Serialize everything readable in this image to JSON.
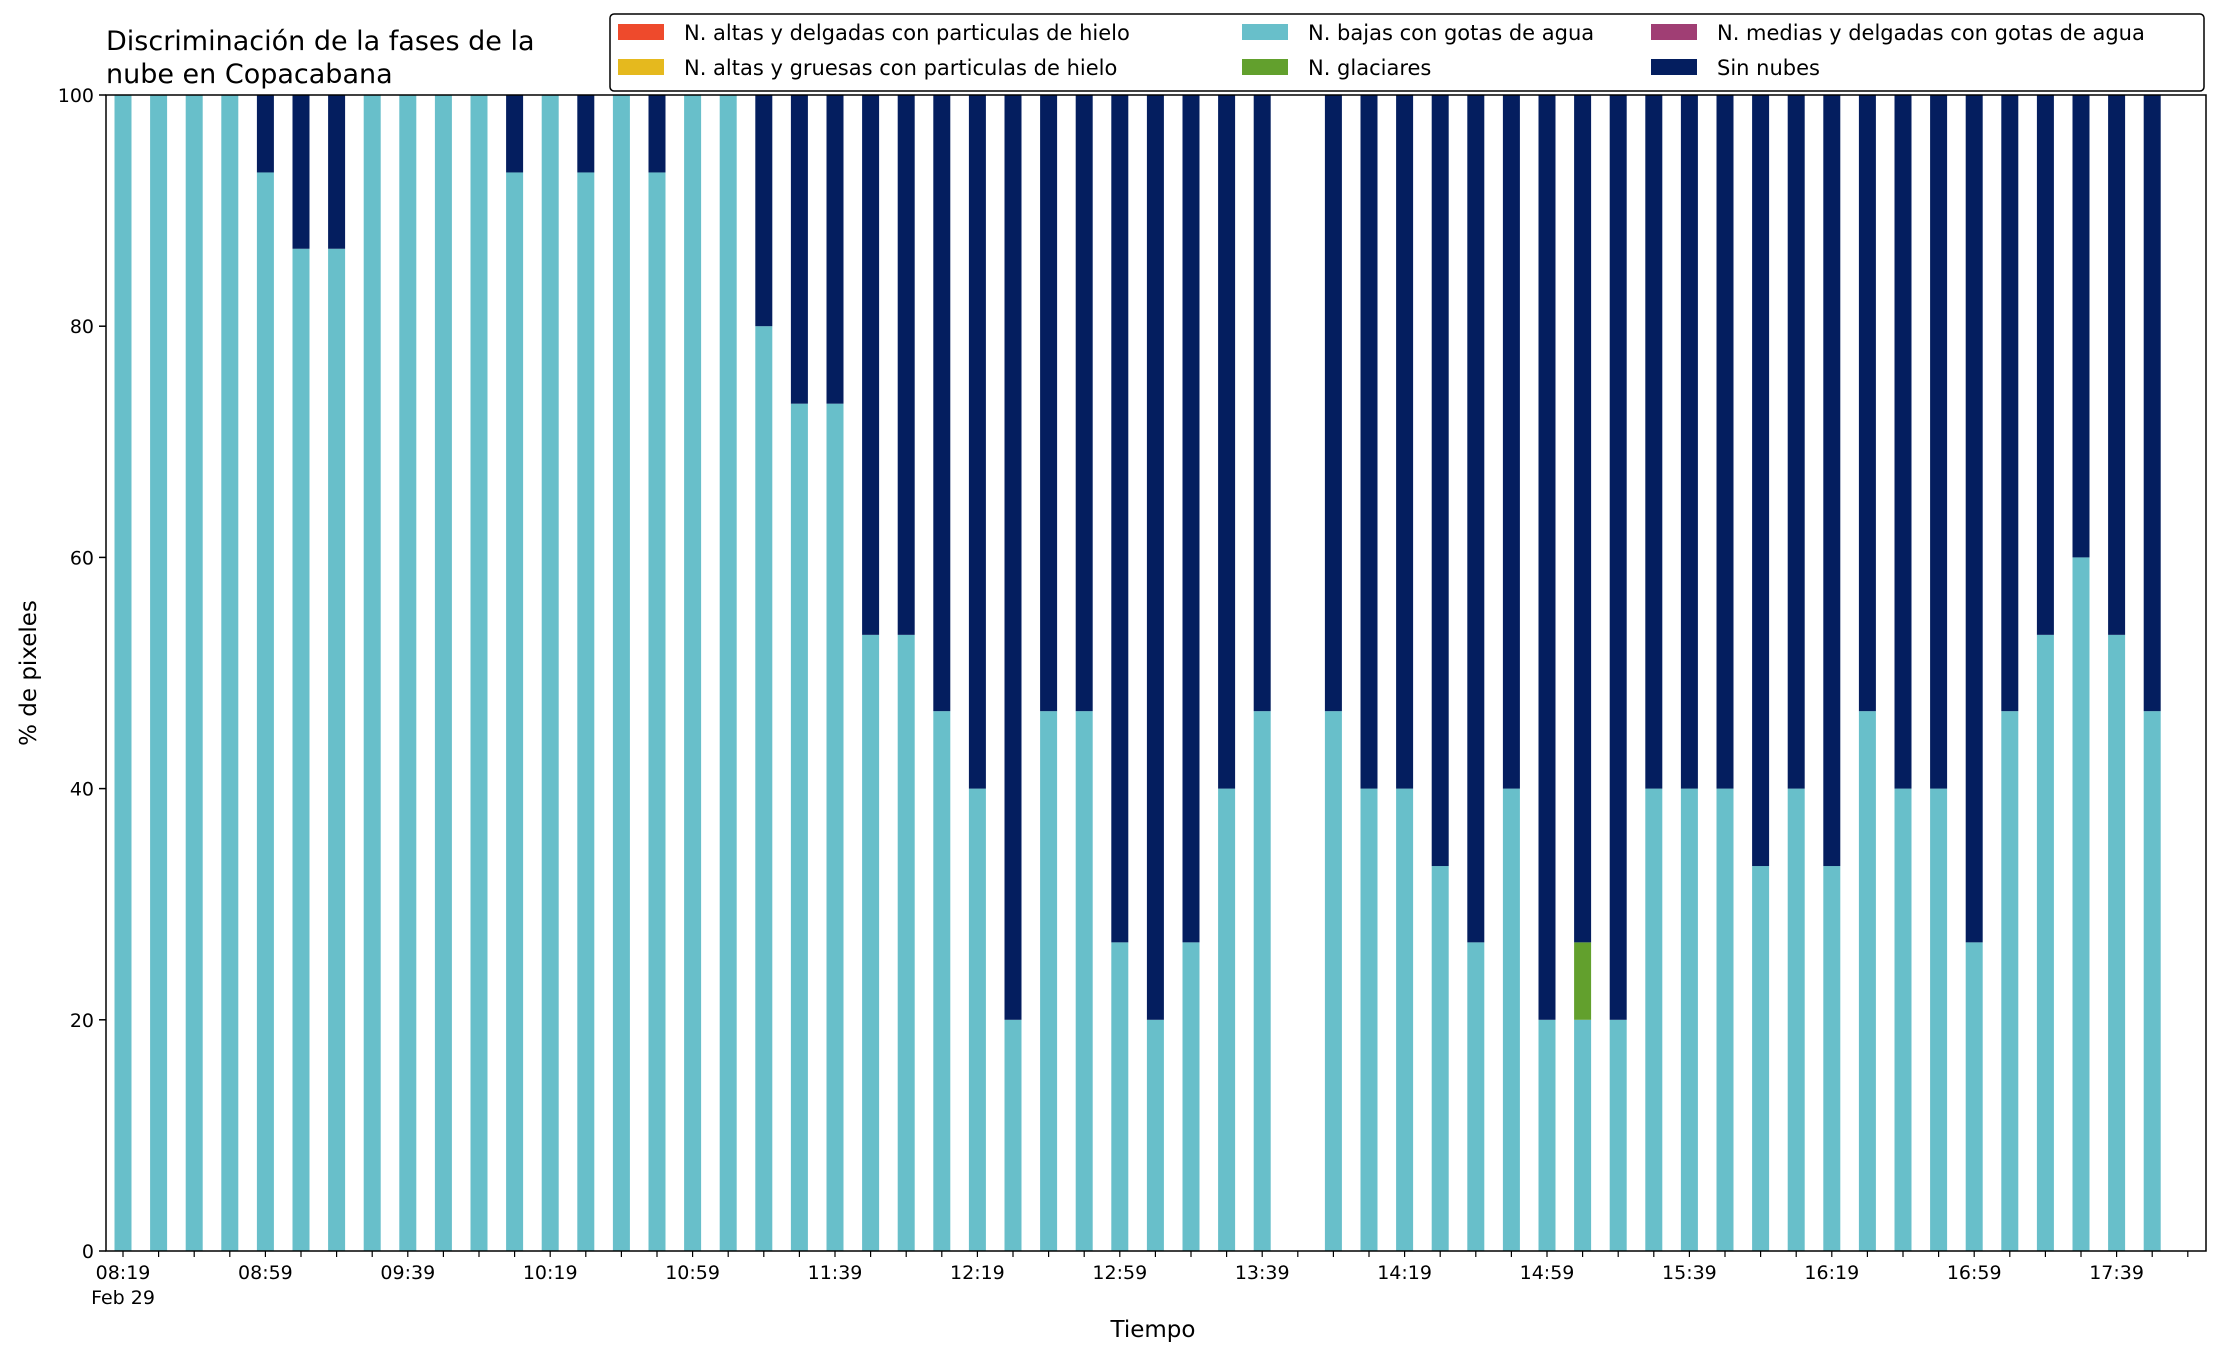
{
  "chart_data": {
    "type": "bar",
    "stacked": true,
    "title_lines": [
      "Discriminación de la fases de la",
      "nube en Copacabana"
    ],
    "xlabel": "Tiempo",
    "ylabel": "% de pixeles",
    "ylim": [
      0,
      100
    ],
    "yticks": [
      0,
      20,
      40,
      60,
      80,
      100
    ],
    "grid": false,
    "legend_position": "top-right",
    "date_label": "Feb 29",
    "x": [
      "08:19",
      "08:29",
      "08:39",
      "08:49",
      "08:59",
      "09:09",
      "09:19",
      "09:29",
      "09:39",
      "09:49",
      "09:59",
      "10:09",
      "10:19",
      "10:29",
      "10:39",
      "10:49",
      "10:59",
      "11:09",
      "11:19",
      "11:29",
      "11:39",
      "11:49",
      "11:59",
      "12:09",
      "12:19",
      "12:29",
      "12:39",
      "12:49",
      "12:59",
      "13:09",
      "13:19",
      "13:29",
      "13:39",
      "13:49",
      "13:59",
      "14:09",
      "14:19",
      "14:29",
      "14:39",
      "14:49",
      "14:59",
      "15:09",
      "15:19",
      "15:29",
      "15:39",
      "15:49",
      "15:59",
      "16:09",
      "16:19",
      "16:29",
      "16:39",
      "16:49",
      "16:59",
      "17:09",
      "17:19",
      "17:29",
      "17:39",
      "17:49"
    ],
    "x_tick_labels": [
      "08:19",
      "08:59",
      "09:39",
      "10:19",
      "10:59",
      "11:39",
      "12:19",
      "12:59",
      "13:39",
      "14:19",
      "14:59",
      "15:39",
      "16:19",
      "16:59",
      "17:39"
    ],
    "series": [
      {
        "name": "N. altas y delgadas con particulas de hielo",
        "color": "#ee4a2c",
        "values": [
          0,
          0,
          0,
          0,
          0,
          0,
          0,
          0,
          0,
          0,
          0,
          0,
          0,
          0,
          0,
          0,
          0,
          0,
          0,
          0,
          0,
          0,
          0,
          0,
          0,
          0,
          0,
          0,
          0,
          0,
          0,
          0,
          0,
          0,
          0,
          0,
          0,
          0,
          0,
          0,
          0,
          0,
          0,
          0,
          0,
          0,
          0,
          0,
          0,
          0,
          0,
          0,
          0,
          0,
          0,
          0,
          0,
          0
        ]
      },
      {
        "name": "N. altas y gruesas con particulas de hielo",
        "color": "#e5b91e",
        "values": [
          0,
          0,
          0,
          0,
          0,
          0,
          0,
          0,
          0,
          0,
          0,
          0,
          0,
          0,
          0,
          0,
          0,
          0,
          0,
          0,
          0,
          0,
          0,
          0,
          0,
          0,
          0,
          0,
          0,
          0,
          0,
          0,
          0,
          0,
          0,
          0,
          0,
          0,
          0,
          0,
          0,
          0,
          0,
          0,
          0,
          0,
          0,
          0,
          0,
          0,
          0,
          0,
          0,
          0,
          0,
          0,
          0,
          0
        ]
      },
      {
        "name": "N. bajas con gotas de agua",
        "color": "#68bfca",
        "values": [
          100,
          100,
          100,
          100,
          93.3,
          86.7,
          86.7,
          100,
          100,
          100,
          100,
          93.3,
          100,
          93.3,
          100,
          93.3,
          100,
          100,
          80,
          73.3,
          73.3,
          53.3,
          53.3,
          46.7,
          40,
          20,
          46.7,
          46.7,
          26.7,
          20,
          26.7,
          40,
          46.7,
          null,
          46.7,
          40,
          40,
          33.3,
          26.7,
          40,
          20,
          20,
          20,
          40,
          40,
          40,
          33.3,
          40,
          33.3,
          46.7,
          40,
          40,
          26.7,
          46.7,
          53.3,
          60,
          53.3,
          46.7
        ]
      },
      {
        "name": "N. glaciares",
        "color": "#62a02d",
        "values": [
          0,
          0,
          0,
          0,
          0,
          0,
          0,
          0,
          0,
          0,
          0,
          0,
          0,
          0,
          0,
          0,
          0,
          0,
          0,
          0,
          0,
          0,
          0,
          0,
          0,
          0,
          0,
          0,
          0,
          0,
          0,
          0,
          0,
          null,
          0,
          0,
          0,
          0,
          0,
          0,
          0,
          6.7,
          0,
          0,
          0,
          0,
          0,
          0,
          0,
          0,
          0,
          0,
          0,
          0,
          0,
          0,
          0,
          0
        ]
      },
      {
        "name": "N. medias y delgadas con gotas de agua",
        "color": "#a03e74",
        "values": [
          0,
          0,
          0,
          0,
          0,
          0,
          0,
          0,
          0,
          0,
          0,
          0,
          0,
          0,
          0,
          0,
          0,
          0,
          0,
          0,
          0,
          0,
          0,
          0,
          0,
          0,
          0,
          0,
          0,
          0,
          0,
          0,
          0,
          0,
          0,
          0,
          0,
          0,
          0,
          0,
          0,
          0,
          0,
          0,
          0,
          0,
          0,
          0,
          0,
          0,
          0,
          0,
          0,
          0,
          0,
          0,
          0,
          0
        ]
      },
      {
        "name": "Sin nubes",
        "color": "#041e5f",
        "values": [
          0,
          0,
          0,
          0,
          6.7,
          13.3,
          13.3,
          0,
          0,
          0,
          0,
          6.7,
          0,
          6.7,
          0,
          6.7,
          0,
          0,
          20,
          26.7,
          26.7,
          46.7,
          46.7,
          53.3,
          60,
          80,
          53.3,
          53.3,
          73.3,
          80,
          73.3,
          60,
          53.3,
          null,
          53.3,
          60,
          60,
          66.7,
          73.3,
          60,
          80,
          73.3,
          80,
          60,
          60,
          60,
          66.7,
          60,
          66.7,
          53.3,
          60,
          60,
          73.3,
          53.3,
          46.7,
          40,
          46.7,
          53.3
        ]
      }
    ],
    "legend_order": [
      0,
      1,
      2,
      3,
      4,
      5
    ]
  }
}
